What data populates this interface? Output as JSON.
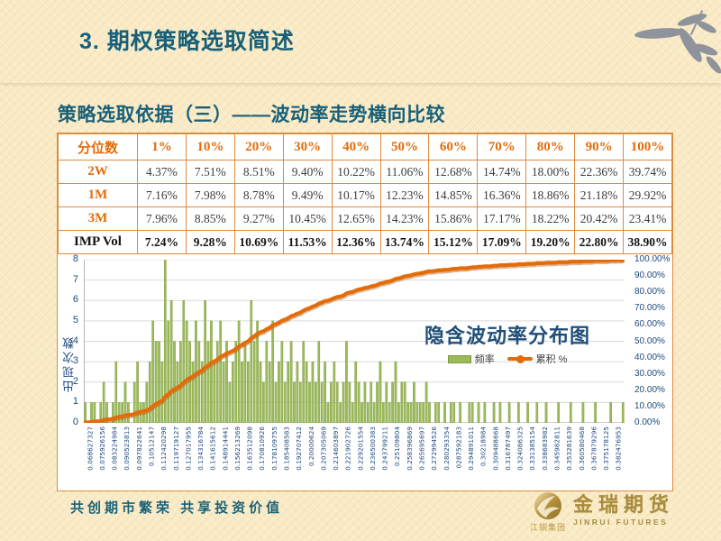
{
  "slide": {
    "title": "3. 期权策略选取简述",
    "subtitle": "策略选取依据（三）——波动率走势横向比较"
  },
  "table": {
    "header": [
      "分位数",
      "1%",
      "10%",
      "20%",
      "30%",
      "40%",
      "50%",
      "60%",
      "70%",
      "80%",
      "90%",
      "100%"
    ],
    "rows": [
      {
        "label": "2W",
        "bold": false,
        "values": [
          "4.37%",
          "7.51%",
          "8.51%",
          "9.40%",
          "10.22%",
          "11.06%",
          "12.68%",
          "14.74%",
          "18.00%",
          "22.36%",
          "39.74%"
        ]
      },
      {
        "label": "1M",
        "bold": false,
        "values": [
          "7.16%",
          "7.98%",
          "8.78%",
          "9.49%",
          "10.17%",
          "12.23%",
          "14.85%",
          "16.36%",
          "18.86%",
          "21.18%",
          "29.92%"
        ]
      },
      {
        "label": "3M",
        "bold": false,
        "values": [
          "7.96%",
          "8.85%",
          "9.27%",
          "10.45%",
          "12.65%",
          "14.23%",
          "15.86%",
          "17.17%",
          "18.22%",
          "20.42%",
          "23.41%"
        ]
      },
      {
        "label": "IMP Vol",
        "bold": true,
        "values": [
          "7.24%",
          "9.28%",
          "10.69%",
          "11.53%",
          "12.36%",
          "13.74%",
          "15.12%",
          "17.09%",
          "19.20%",
          "22.80%",
          "38.90%"
        ]
      }
    ]
  },
  "chart_data": {
    "type": "bar",
    "subtype": "histogram-with-cumulative-line",
    "title": "隐含波动率分布图",
    "y_left_title": "出现次数",
    "y_left_ticks": [
      0,
      1,
      2,
      3,
      4,
      5,
      6,
      7,
      8
    ],
    "ylim_left": [
      0,
      8
    ],
    "y_right_ticks": [
      "100.00%",
      "90.00%",
      "80.00%",
      "70.00%",
      "60.00%",
      "50.00%",
      "40.00%",
      "30.00%",
      "20.00%",
      "10.00%",
      "0.00%"
    ],
    "ylim_right_percent": [
      0,
      100
    ],
    "grid": "horizontal",
    "legend_position": "inside-center",
    "legend": [
      {
        "label": "频率",
        "type": "bar",
        "color": "#9BBB59"
      },
      {
        "label": "累积 %",
        "type": "line",
        "color": "#E36C09"
      }
    ],
    "bin_labels": [
      "0.068627327",
      "0.075926156",
      "0.083224984",
      "0.090523813",
      "0.097822641",
      "0.10512147",
      "0.112420298",
      "0.119719127",
      "0.127017955",
      "0.134316784",
      "0.141615612",
      "0.148914441",
      "0.156213269",
      "0.163512098",
      "0.170810926",
      "0.178109755",
      "0.185408583",
      "0.192707412",
      "0.20000624",
      "0.207305069",
      "0.214603897",
      "0.221902726",
      "0.229201554",
      "0.236500383",
      "0.243799211",
      "0.25109804",
      "0.258396869",
      "0.265695697",
      "0.272994526",
      "0.280293354",
      "0287592183",
      "0.294891011",
      "0.30218984",
      "0.309488668",
      "0.316787497",
      "0.324086325",
      "0.331385154",
      "0.338683982",
      "0.345982811",
      "0.353281639",
      "0.360580468",
      "0.367879296",
      "0.375178125",
      "0.382476953"
    ],
    "bars_per_bin_label": 4,
    "frequencies": [
      1,
      0,
      1,
      1,
      0,
      1,
      2,
      1,
      0,
      1,
      3,
      1,
      1,
      2,
      1,
      0,
      2,
      3,
      1,
      1,
      2,
      3,
      5,
      4,
      4,
      3,
      8,
      5,
      6,
      4,
      3,
      4,
      6,
      5,
      4,
      3,
      5,
      4,
      3,
      6,
      4,
      5,
      3,
      4,
      5,
      3,
      4,
      2,
      3,
      4,
      5,
      3,
      4,
      3,
      6,
      4,
      5,
      3,
      2,
      4,
      3,
      5,
      2,
      3,
      4,
      2,
      3,
      4,
      2,
      3,
      2,
      4,
      3,
      2,
      3,
      2,
      4,
      2,
      3,
      1,
      2,
      3,
      2,
      1,
      2,
      4,
      2,
      1,
      3,
      2,
      1,
      2,
      1,
      2,
      1,
      2,
      3,
      1,
      2,
      1,
      2,
      3,
      1,
      2,
      2,
      1,
      1,
      2,
      1,
      1,
      1,
      2,
      1,
      0,
      1,
      1,
      0,
      1,
      0,
      1,
      1,
      0,
      1,
      0,
      0,
      1,
      1,
      0,
      1,
      0,
      1,
      0,
      0,
      1,
      0,
      1,
      0,
      0,
      1,
      0,
      0,
      1,
      0,
      0,
      1,
      0,
      0,
      1,
      0,
      0,
      1,
      0,
      0,
      0,
      1,
      0,
      0,
      0,
      1,
      0,
      0,
      0,
      1,
      0,
      0,
      0,
      1,
      0,
      0,
      0,
      0,
      1,
      0,
      0,
      0,
      1
    ]
  },
  "footer": {
    "slogan": "共创期市繁荣  共享投资价值",
    "logo_group": "江铜集团",
    "logo_cn": "金瑞期货",
    "logo_en": "JINRUI FUTURES"
  },
  "colors": {
    "background_cream": "#FAEBC6",
    "title_teal": "#186079",
    "table_border_orange": "#E08A3C",
    "accent_orange": "#E36C09",
    "bar_green": "#9BBB59",
    "bar_green_edge": "#7E9A3F",
    "axis_navy": "#1F497D",
    "chart_title_blue": "#1F4E79",
    "grid_gray": "#DADADA",
    "logo_gold": "#A98B3F"
  }
}
